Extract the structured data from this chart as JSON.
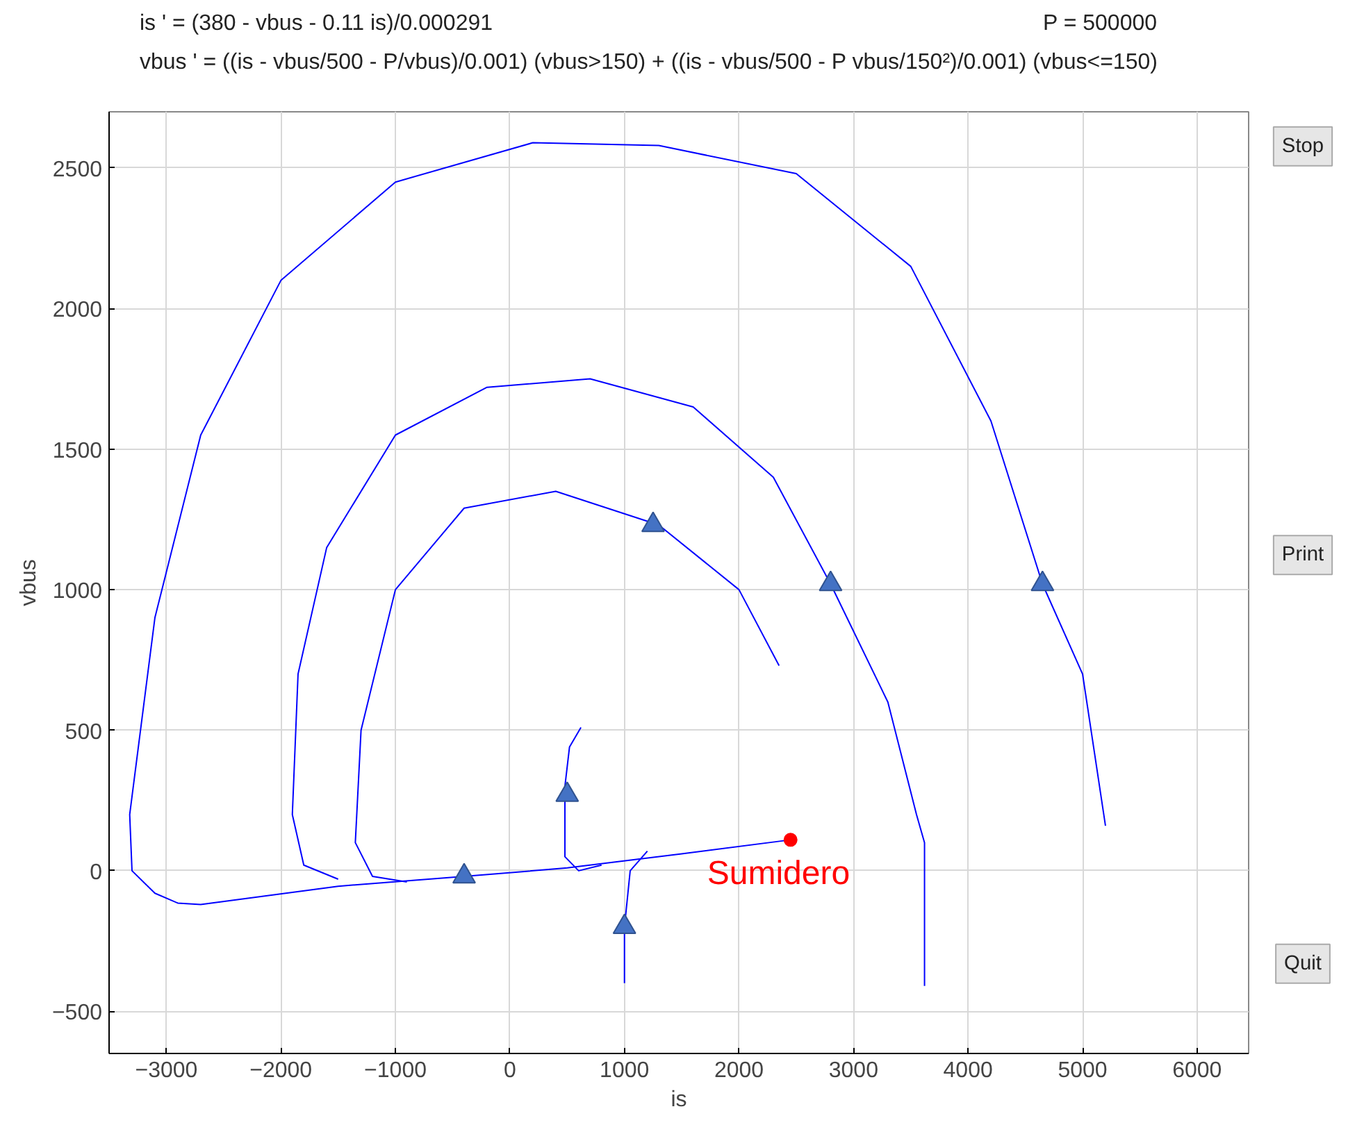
{
  "chart_data": {
    "type": "line",
    "title": "is ' = (380 - vbus - 0.11 is)/0.000291",
    "subtitle": "vbus ' = ((is - vbus/500 - P/vbus)/0.001) (vbus>150) + ((is - vbus/500 - P vbus/150²)/0.001) (vbus<=150)",
    "xlabel": "is",
    "ylabel": "vbus",
    "xlim": [
      -3500,
      6450
    ],
    "ylim": [
      -650,
      2700
    ],
    "xticks": [
      -3000,
      -2000,
      -1000,
      0,
      1000,
      2000,
      3000,
      4000,
      5000,
      6000
    ],
    "yticks": [
      -500,
      0,
      500,
      1000,
      1500,
      2000,
      2500
    ],
    "grid": true,
    "marker": "none",
    "line_style": "solid",
    "series": [
      {
        "color": "#0000ff",
        "x": [
          5200,
          5000,
          4650,
          4200,
          3500,
          2500,
          1300,
          200,
          -1000,
          -2000,
          -2700,
          -3100,
          -3320,
          -3300,
          -3100,
          -2900,
          -2700,
          -1500,
          -400,
          500,
          1500,
          2450
        ],
        "values": [
          160,
          700,
          1020,
          1600,
          2150,
          2480,
          2580,
          2590,
          2450,
          2100,
          1550,
          900,
          200,
          0,
          -80,
          -115,
          -120,
          -55,
          -20,
          10,
          60,
          110
        ]
      },
      {
        "color": "#0000ff",
        "x": [
          3620,
          3620,
          3550,
          3300,
          2800,
          2300,
          1600,
          700,
          -200,
          -1000,
          -1600,
          -1850,
          -1900,
          -1800,
          -1500
        ],
        "values": [
          -410,
          100,
          200,
          600,
          1020,
          1400,
          1650,
          1750,
          1720,
          1550,
          1150,
          700,
          200,
          20,
          -30
        ]
      },
      {
        "color": "#0000ff",
        "x": [
          2350,
          2000,
          1300,
          400,
          -400,
          -1000,
          -1300,
          -1350,
          -1200,
          -900
        ],
        "values": [
          730,
          1000,
          1230,
          1350,
          1290,
          1000,
          500,
          100,
          -20,
          -40
        ]
      },
      {
        "color": "#0000ff",
        "x": [
          620,
          520,
          480,
          480,
          600,
          800
        ],
        "values": [
          510,
          440,
          300,
          50,
          0,
          20
        ]
      },
      {
        "color": "#0000ff",
        "x": [
          1000,
          1000,
          1050,
          1200
        ],
        "values": [
          -400,
          -200,
          0,
          70
        ]
      },
      {
        "type": "scatter",
        "marker": "triangle",
        "color": "#4472c4",
        "x": [
          1250,
          2800,
          4650,
          500,
          -400,
          1000
        ],
        "values": [
          1230,
          1020,
          1020,
          270,
          -20,
          -200
        ]
      },
      {
        "type": "scatter",
        "marker": "circle",
        "color": "#ff0000",
        "x": [
          2450
        ],
        "values": [
          110
        ]
      }
    ],
    "annotations": [
      {
        "text": "Sumidero",
        "x": 2450,
        "y": 110
      },
      "P = 500000",
      "Stop",
      "Print",
      "Quit"
    ]
  }
}
